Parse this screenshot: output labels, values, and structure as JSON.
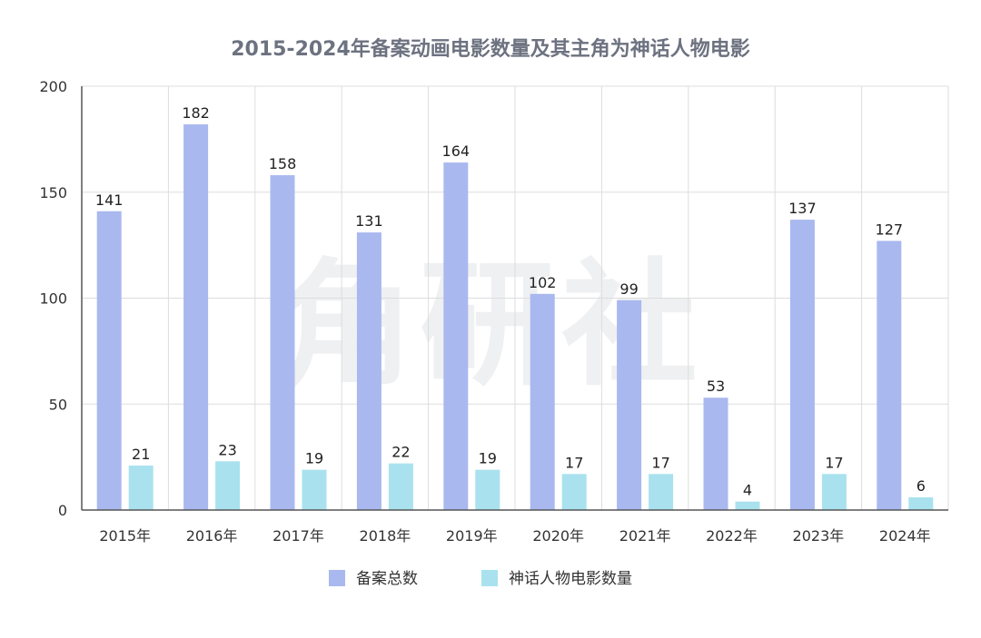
{
  "title": "2015-2024年备案动画电影数量及其主角为神话人物电影",
  "watermark": "角研社",
  "colors": {
    "total": "#a9b8ef",
    "myth": "#a9e2ee",
    "grid": "#dddddd",
    "axis": "#555555"
  },
  "chart_data": {
    "type": "bar",
    "categories": [
      "2015年",
      "2016年",
      "2017年",
      "2018年",
      "2019年",
      "2020年",
      "2021年",
      "2022年",
      "2023年",
      "2024年"
    ],
    "series": [
      {
        "name": "备案总数",
        "values": [
          141,
          182,
          158,
          131,
          164,
          102,
          99,
          53,
          137,
          127
        ]
      },
      {
        "name": "神话人物电影数量",
        "values": [
          21,
          23,
          19,
          22,
          19,
          17,
          17,
          4,
          17,
          6
        ]
      }
    ],
    "ylim": [
      0,
      200
    ],
    "yticks": [
      0,
      50,
      100,
      150,
      200
    ],
    "grid": true,
    "legend_position": "bottom",
    "data_labels": true
  }
}
